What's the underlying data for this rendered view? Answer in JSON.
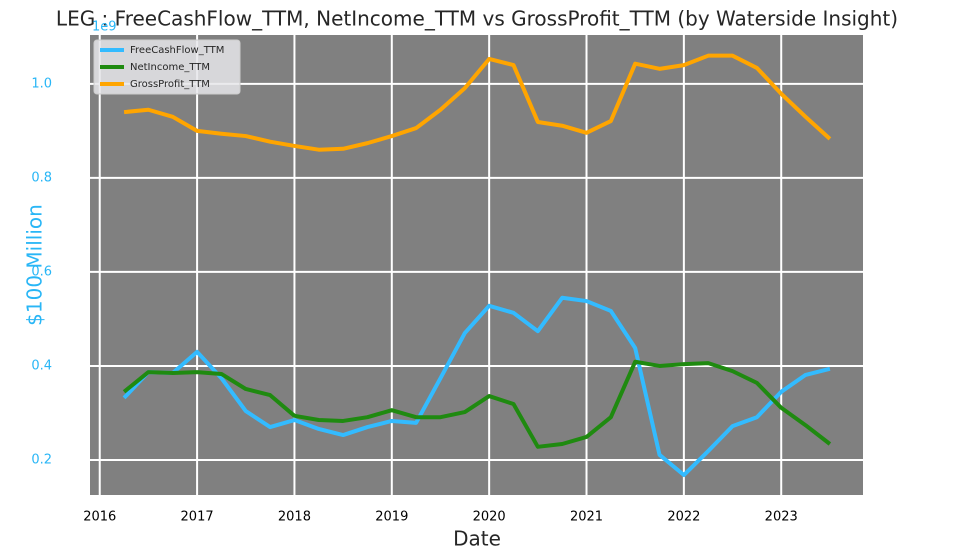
{
  "chart_data": {
    "type": "line",
    "title": "LEG : FreeCashFlow_TTM, NetIncome_TTM vs GrossProfit_TTM (by Waterside Insight)",
    "x_label": "Date",
    "y_label": "$100 Million",
    "offset_label": "1e9",
    "x": [
      2016.25,
      2016.5,
      2016.75,
      2017,
      2017.25,
      2017.5,
      2017.75,
      2018,
      2018.25,
      2018.5,
      2018.75,
      2019,
      2019.25,
      2019.5,
      2019.75,
      2020,
      2020.25,
      2020.5,
      2020.75,
      2021,
      2021.25,
      2021.5,
      2021.75,
      2022,
      2022.25,
      2022.5,
      2022.75,
      2023,
      2023.25,
      2023.5
    ],
    "series": [
      {
        "name": "FreeCashFlow_TTM",
        "color": "#33bbff",
        "values": [
          0.332,
          0.387,
          0.385,
          0.43,
          0.374,
          0.304,
          0.27,
          0.285,
          0.266,
          0.253,
          0.27,
          0.283,
          0.279,
          0.374,
          0.47,
          0.528,
          0.513,
          0.474,
          0.545,
          0.538,
          0.517,
          0.438,
          0.211,
          0.168,
          0.219,
          0.272,
          0.291,
          0.345,
          0.381,
          0.394
        ]
      },
      {
        "name": "NetIncome_TTM",
        "color": "#1f8a10",
        "values": [
          0.345,
          0.387,
          0.385,
          0.387,
          0.383,
          0.351,
          0.338,
          0.294,
          0.285,
          0.283,
          0.291,
          0.306,
          0.291,
          0.291,
          0.302,
          0.336,
          0.319,
          0.228,
          0.234,
          0.249,
          0.291,
          0.409,
          0.4,
          0.404,
          0.406,
          0.389,
          0.364,
          0.311,
          0.274,
          0.234
        ]
      },
      {
        "name": "GrossProfit_TTM",
        "color": "#ffa500",
        "values": [
          0.94,
          0.945,
          0.93,
          0.9,
          0.894,
          0.889,
          0.877,
          0.868,
          0.86,
          0.862,
          0.874,
          0.889,
          0.906,
          0.945,
          0.991,
          1.053,
          1.04,
          0.919,
          0.911,
          0.896,
          0.921,
          1.043,
          1.032,
          1.04,
          1.06,
          1.06,
          1.034,
          0.979,
          0.93,
          0.883
        ]
      }
    ],
    "xlim": [
      2015.9,
      2023.84
    ],
    "xticks": [
      2016,
      2017,
      2018,
      2019,
      2020,
      2021,
      2022,
      2023
    ],
    "ylim": [
      0.1255,
      1.104
    ],
    "yticks": [
      0.2,
      0.4,
      0.6,
      0.8,
      {
        "value": 1,
        "label": "1.0"
      }
    ],
    "grid": true,
    "legend": "upper-left",
    "axis_color": "#29b6f6",
    "plot_background": "#808080"
  }
}
